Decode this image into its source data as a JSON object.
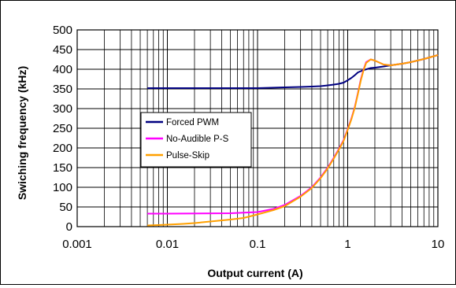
{
  "chart_data": {
    "type": "line",
    "title": "",
    "xlabel": "Output current (A)",
    "ylabel": "Swiching frequency (kHz)",
    "xscale": "log",
    "xlim": [
      0.001,
      10
    ],
    "ylim": [
      0,
      500
    ],
    "x_ticks": [
      "0.001",
      "0.01",
      "0.1",
      "1",
      "10"
    ],
    "y_ticks": [
      "0",
      "50",
      "100",
      "150",
      "200",
      "250",
      "300",
      "350",
      "400",
      "450",
      "500"
    ],
    "grid": true,
    "legend_position": "center-left",
    "series": [
      {
        "name": "Forced PWM",
        "color": "#000080",
        "x": [
          0.006,
          0.01,
          0.05,
          0.1,
          0.2,
          0.3,
          0.4,
          0.5,
          0.6,
          0.7,
          0.8,
          0.9,
          1.0,
          1.1,
          1.2,
          1.3,
          1.5,
          1.8,
          2.0,
          2.5,
          3.0,
          4.0,
          5.0,
          7.0,
          10.0
        ],
        "y": [
          352,
          352,
          352,
          352,
          354,
          355,
          356,
          357,
          359,
          361,
          363,
          366,
          372,
          378,
          385,
          392,
          398,
          403,
          404,
          407,
          410,
          414,
          418,
          426,
          436
        ]
      },
      {
        "name": "No-Audible P-S",
        "color": "#ff00ff",
        "x": [
          0.006,
          0.01,
          0.05,
          0.1,
          0.15,
          0.2,
          0.3,
          0.4,
          0.5,
          0.6,
          0.7,
          0.8,
          0.9,
          1.0,
          1.1,
          1.2,
          1.3,
          1.4,
          1.5,
          1.6,
          1.8,
          2.0,
          2.5,
          3.0,
          4.0,
          5.0,
          7.0,
          10.0
        ],
        "y": [
          33,
          33,
          34,
          37,
          45,
          55,
          78,
          100,
          125,
          150,
          175,
          198,
          220,
          248,
          275,
          305,
          340,
          375,
          400,
          418,
          425,
          422,
          412,
          410,
          414,
          418,
          426,
          436
        ]
      },
      {
        "name": "Pulse-Skip",
        "color": "#ffa000",
        "x": [
          0.006,
          0.008,
          0.01,
          0.015,
          0.02,
          0.03,
          0.05,
          0.07,
          0.1,
          0.15,
          0.2,
          0.3,
          0.4,
          0.5,
          0.6,
          0.7,
          0.8,
          0.9,
          1.0,
          1.1,
          1.2,
          1.3,
          1.4,
          1.5,
          1.6,
          1.8,
          2.0,
          2.5,
          3.0,
          4.0,
          5.0,
          7.0,
          10.0
        ],
        "y": [
          3,
          4,
          5,
          7,
          9,
          13,
          18,
          22,
          31,
          42,
          52,
          76,
          98,
          123,
          148,
          173,
          196,
          218,
          246,
          273,
          303,
          338,
          372,
          398,
          416,
          425,
          422,
          412,
          410,
          414,
          418,
          426,
          436
        ]
      }
    ]
  }
}
